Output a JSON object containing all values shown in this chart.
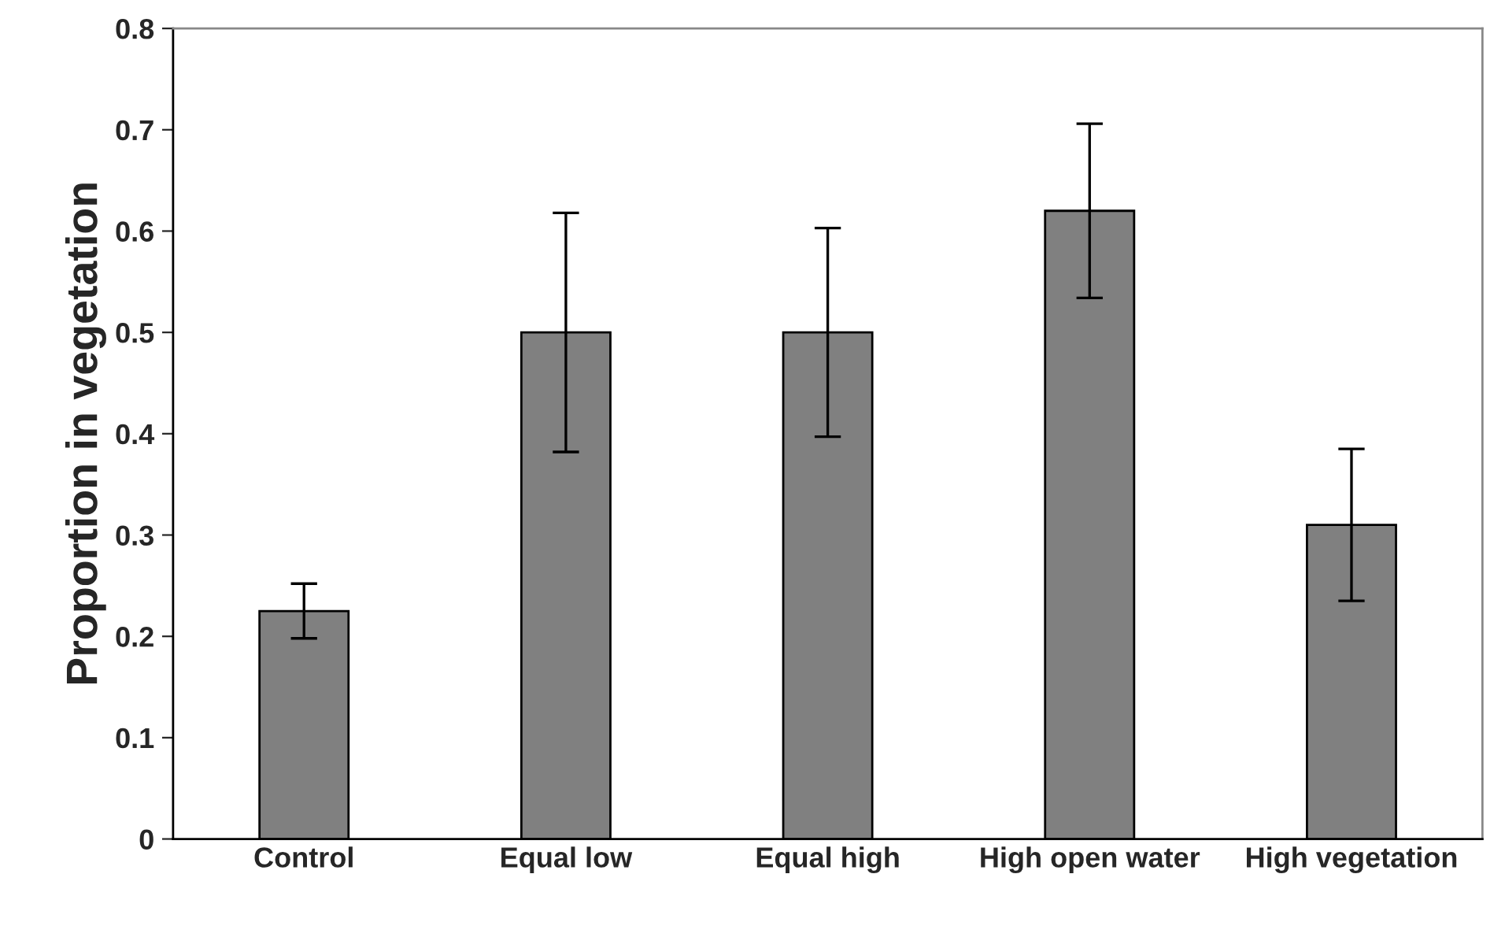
{
  "chart_data": {
    "type": "bar",
    "ylabel": "Proportion in vegetation",
    "categories": [
      "Control",
      "Equal low",
      "Equal high",
      "High open water",
      "High vegetation"
    ],
    "values": [
      0.225,
      0.5,
      0.5,
      0.62,
      0.31
    ],
    "errors": [
      0.027,
      0.118,
      0.103,
      0.086,
      0.075
    ],
    "color": "#808080",
    "ylim": [
      0,
      0.8
    ],
    "yticks": [
      {
        "value": 0,
        "label": "0"
      },
      0.1,
      0.2,
      0.3,
      0.4,
      0.5,
      0.6,
      0.7,
      0.8
    ],
    "grid": false,
    "legend": false
  }
}
